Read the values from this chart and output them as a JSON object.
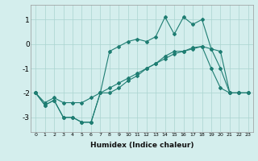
{
  "xlabel": "Humidex (Indice chaleur)",
  "bg_color": "#d4eeed",
  "grid_color": "#aad4d0",
  "line_color": "#1e7d72",
  "xlim": [
    -0.5,
    23.5
  ],
  "ylim": [
    -3.6,
    1.6
  ],
  "yticks": [
    -3,
    -2,
    -1,
    0,
    1
  ],
  "xticks": [
    0,
    1,
    2,
    3,
    4,
    5,
    6,
    7,
    8,
    9,
    10,
    11,
    12,
    13,
    14,
    15,
    16,
    17,
    18,
    19,
    20,
    21,
    22,
    23
  ],
  "line1_x": [
    0,
    1,
    2,
    3,
    4,
    5,
    6,
    7,
    8,
    9,
    10,
    11,
    12,
    13,
    14,
    15,
    16,
    17,
    18,
    19,
    20,
    21,
    22,
    23
  ],
  "line1_y": [
    -2.0,
    -2.5,
    -2.3,
    -3.0,
    -3.0,
    -3.2,
    -3.2,
    -2.0,
    -2.0,
    -1.8,
    -1.5,
    -1.3,
    -1.0,
    -0.8,
    -0.5,
    -0.3,
    -0.3,
    -0.2,
    -0.1,
    -1.0,
    -1.8,
    -2.0,
    -2.0,
    -2.0
  ],
  "line2_x": [
    0,
    1,
    2,
    3,
    4,
    5,
    6,
    7,
    8,
    9,
    10,
    11,
    12,
    13,
    14,
    15,
    16,
    17,
    18,
    19,
    20,
    21,
    22,
    23
  ],
  "line2_y": [
    -2.0,
    -2.5,
    -2.3,
    -3.0,
    -3.0,
    -3.2,
    -3.2,
    -2.0,
    -0.3,
    -0.1,
    0.1,
    0.2,
    0.1,
    0.3,
    1.1,
    0.4,
    1.1,
    0.8,
    1.0,
    -0.2,
    -1.0,
    -2.0,
    -2.0,
    -2.0
  ],
  "line3_x": [
    0,
    1,
    2,
    3,
    4,
    5,
    6,
    7,
    8,
    9,
    10,
    11,
    12,
    13,
    14,
    15,
    16,
    17,
    18,
    19,
    20,
    21,
    22,
    23
  ],
  "line3_y": [
    -2.0,
    -2.4,
    -2.2,
    -2.4,
    -2.4,
    -2.4,
    -2.2,
    -2.0,
    -1.8,
    -1.6,
    -1.4,
    -1.2,
    -1.0,
    -0.8,
    -0.6,
    -0.4,
    -0.3,
    -0.15,
    -0.1,
    -0.2,
    -0.3,
    -2.0,
    -2.0,
    -2.0
  ]
}
